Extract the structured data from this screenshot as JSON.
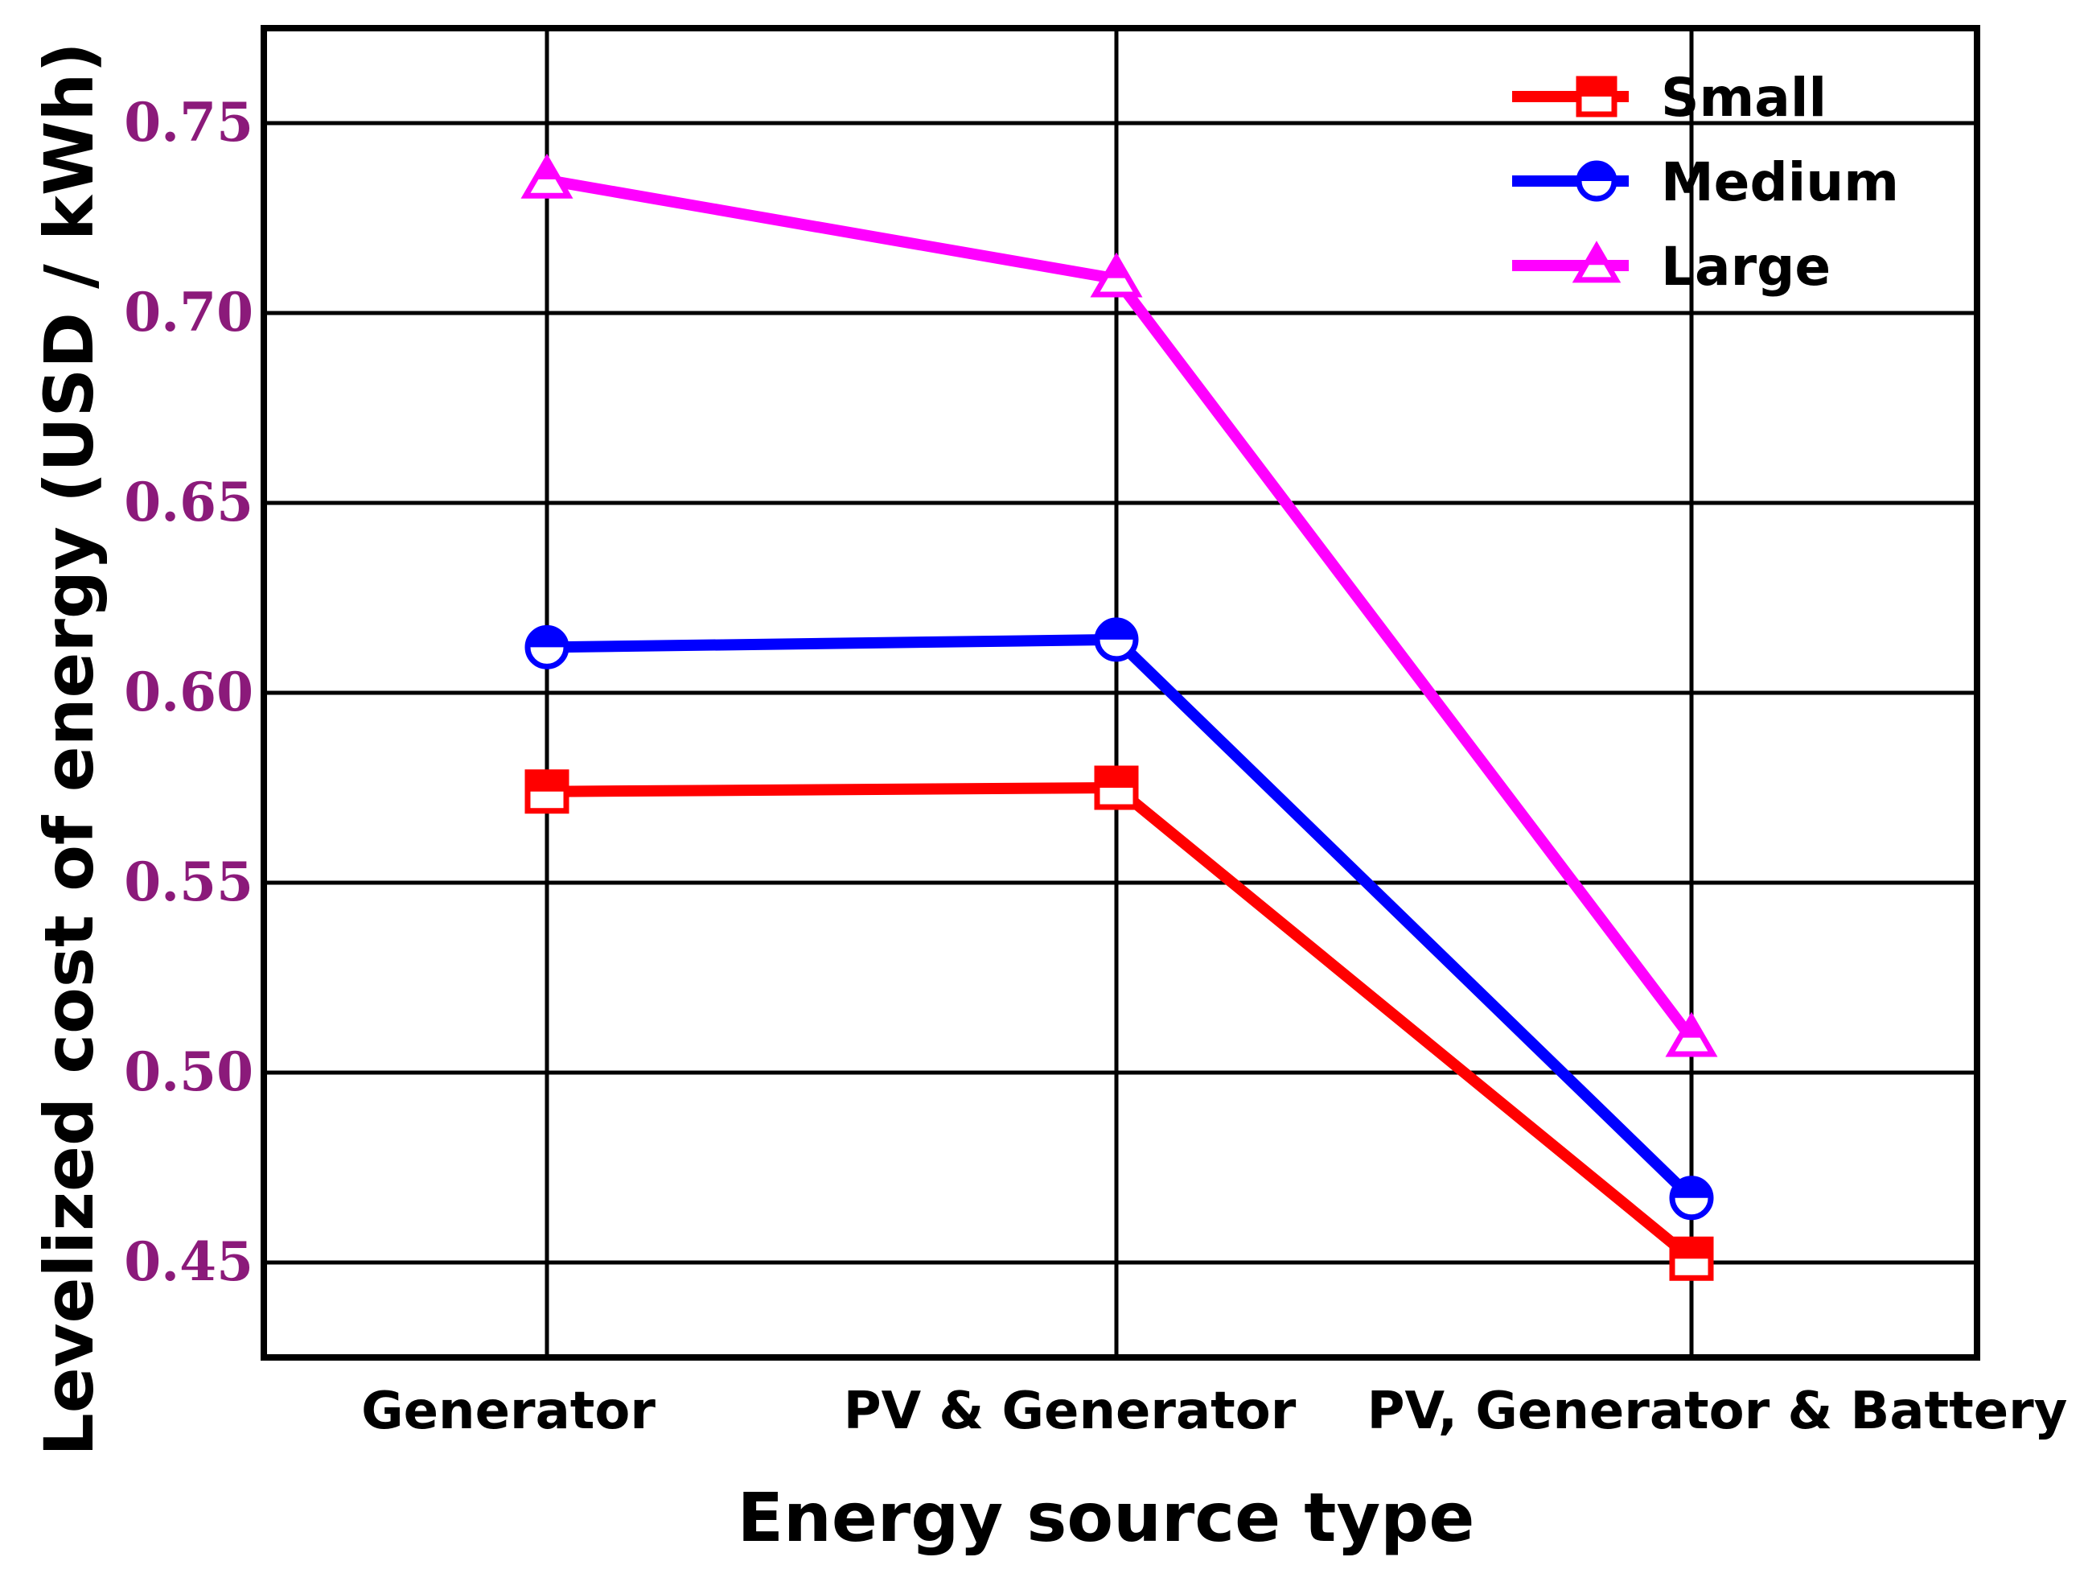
{
  "chart_data": {
    "type": "line",
    "xlabel": "Energy source type",
    "ylabel": "Levelized cost of energy (USD / kWh)",
    "categories": [
      "Generator",
      "PV & Generator",
      "PV, Generator & Battery"
    ],
    "ylim": [
      0.425,
      0.775
    ],
    "yticks": [
      0.45,
      0.5,
      0.55,
      0.6,
      0.65,
      0.7,
      0.75
    ],
    "ytick_labels": [
      "0.45",
      "0.50",
      "0.55",
      "0.60",
      "0.65",
      "0.70",
      "0.75"
    ],
    "grid": true,
    "legend_position": "top-right",
    "series": [
      {
        "name": "Small",
        "marker": "square",
        "color": "#ff0000",
        "values": [
          0.574,
          0.575,
          0.451
        ]
      },
      {
        "name": "Medium",
        "marker": "circle",
        "color": "#0000ff",
        "values": [
          0.612,
          0.614,
          0.467
        ]
      },
      {
        "name": "Large",
        "marker": "triangle",
        "color": "#ff00ff",
        "values": [
          0.735,
          0.709,
          0.509
        ]
      }
    ],
    "tick_label_color": "#8b1a7a"
  }
}
